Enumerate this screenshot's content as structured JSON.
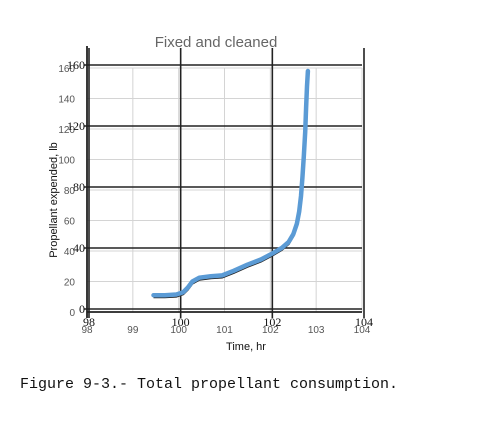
{
  "caption": "Figure 9-3.- Total propellant consumption.",
  "chart_data": {
    "type": "line",
    "title": "Fixed and cleaned",
    "xlabel": "Time, hr",
    "ylabel": "Propellant expended, lb",
    "xlim": [
      98,
      104
    ],
    "ylim": [
      0,
      160
    ],
    "grid": true,
    "xticks": [
      "98",
      "99",
      "100",
      "101",
      "102",
      "103",
      "104"
    ],
    "yticks": [
      "0",
      "20",
      "40",
      "60",
      "80",
      "100",
      "120",
      "140",
      "160"
    ],
    "original_xticks": [
      "98",
      "100",
      "102",
      "104"
    ],
    "original_yticks": [
      "0",
      "40",
      "80",
      "120",
      "160"
    ],
    "series": [
      {
        "name": "",
        "color": "#5b9bd5",
        "x": [
          99.45,
          99.7,
          99.95,
          100.1,
          100.2,
          100.3,
          100.45,
          100.7,
          100.95,
          101.2,
          101.5,
          101.8,
          102.05,
          102.25,
          102.4,
          102.5,
          102.58,
          102.63,
          102.67,
          102.7,
          102.73,
          102.76,
          102.78,
          102.8,
          102.82
        ],
        "y": [
          11,
          11,
          11.5,
          13,
          16,
          20,
          22.5,
          23.5,
          24,
          27,
          31,
          34.5,
          38.5,
          42,
          46,
          51,
          58,
          66,
          76,
          88,
          102,
          118,
          134,
          148,
          158
        ]
      }
    ]
  }
}
